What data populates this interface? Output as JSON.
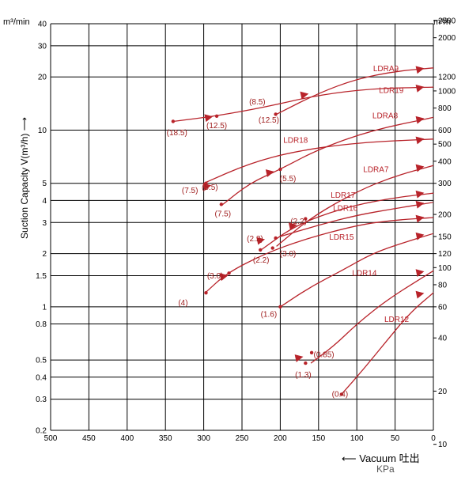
{
  "chart_data": {
    "type": "line",
    "ylabel": "Suction Capacity V(m³/h)",
    "yunit_left": "m³/min",
    "yunit_right": "m³/h",
    "xlabel": "Vacuum 吐出",
    "xunit": "KPa",
    "xlim": [
      500,
      0
    ],
    "ylim": [
      0.2,
      40
    ],
    "yscale": "log",
    "grid": true,
    "x_ticks": [
      500,
      450,
      400,
      350,
      300,
      250,
      200,
      150,
      100,
      50,
      0
    ],
    "y_ticks_left": [
      "0.2",
      "0.3",
      "0.4",
      "0.5",
      "0.8",
      "1",
      "1.5",
      "2",
      "3",
      "4",
      "5",
      "10",
      "20",
      "30",
      "40"
    ],
    "y_ticks_right": [
      "10",
      "20",
      "40",
      "60",
      "80",
      "100",
      "120",
      "150",
      "200",
      "300",
      "400",
      "500",
      "600",
      "800",
      "1000",
      "1200",
      "2000",
      "2500"
    ],
    "series": [
      {
        "name": "LDRA9",
        "points": [
          [
            205,
            12.3
          ],
          [
            150,
            16.2
          ],
          [
            100,
            19.5
          ],
          [
            50,
            21.5
          ],
          [
            0,
            22.5
          ]
        ]
      },
      {
        "name": "LDR19",
        "points": [
          [
            340,
            11.2
          ],
          [
            285,
            12.0
          ],
          [
            220,
            13.5
          ],
          [
            150,
            15.8
          ],
          [
            80,
            17.2
          ],
          [
            0,
            17.5
          ]
        ]
      },
      {
        "name": "LDRA8",
        "points": [
          [
            275,
            3.8
          ],
          [
            240,
            5.0
          ],
          [
            200,
            6.0
          ],
          [
            150,
            7.8
          ],
          [
            80,
            10.0
          ],
          [
            0,
            11.8
          ]
        ]
      },
      {
        "name": "LDR18",
        "points": [
          [
            300,
            5.0
          ],
          [
            240,
            6.5
          ],
          [
            180,
            7.6
          ],
          [
            100,
            8.5
          ],
          [
            0,
            8.9
          ]
        ]
      },
      {
        "name": "LDRA7",
        "points": [
          [
            205,
            2.2
          ],
          [
            160,
            3.2
          ],
          [
            100,
            4.5
          ],
          [
            50,
            5.5
          ],
          [
            0,
            6.3
          ]
        ]
      },
      {
        "name": "LDR17",
        "points": [
          [
            225,
            2.1
          ],
          [
            180,
            2.9
          ],
          [
            120,
            3.6
          ],
          [
            60,
            4.1
          ],
          [
            0,
            4.4
          ]
        ]
      },
      {
        "name": "LDR16",
        "points": [
          [
            200,
            2.5
          ],
          [
            150,
            2.9
          ],
          [
            100,
            3.3
          ],
          [
            50,
            3.6
          ],
          [
            0,
            3.9
          ]
        ]
      },
      {
        "name": "LDR15",
        "points": [
          [
            298,
            1.2
          ],
          [
            270,
            1.55
          ],
          [
            220,
            2.0
          ],
          [
            170,
            2.4
          ],
          [
            100,
            2.9
          ],
          [
            50,
            3.1
          ],
          [
            0,
            3.2
          ]
        ]
      },
      {
        "name": "LDR14",
        "points": [
          [
            200,
            1.0
          ],
          [
            160,
            1.3
          ],
          [
            120,
            1.6
          ],
          [
            80,
            2.0
          ],
          [
            40,
            2.3
          ],
          [
            0,
            2.6
          ]
        ]
      },
      {
        "name": "LDR12",
        "points": [
          [
            160,
            0.48
          ],
          [
            130,
            0.6
          ],
          [
            100,
            0.8
          ],
          [
            60,
            1.1
          ],
          [
            0,
            1.6
          ]
        ]
      },
      {
        "name": "",
        "points": [
          [
            120,
            0.32
          ],
          [
            90,
            0.45
          ],
          [
            60,
            0.65
          ],
          [
            30,
            0.93
          ],
          [
            0,
            1.2
          ]
        ]
      }
    ],
    "curve_labels": [
      {
        "text": "LDRA9",
        "x": 62,
        "y": 21.5
      },
      {
        "text": "LDR19",
        "x": 55,
        "y": 16.2
      },
      {
        "text": "LDRA8",
        "x": 63,
        "y": 11.7
      },
      {
        "text": "LDR18",
        "x": 180,
        "y": 8.5
      },
      {
        "text": "LDRA7",
        "x": 75,
        "y": 5.8
      },
      {
        "text": "LDR17",
        "x": 118,
        "y": 4.15
      },
      {
        "text": "LDR16",
        "x": 115,
        "y": 3.5
      },
      {
        "text": "LDR15",
        "x": 120,
        "y": 2.4
      },
      {
        "text": "LDR14",
        "x": 90,
        "y": 1.5
      },
      {
        "text": "LDR12",
        "x": 48,
        "y": 0.82
      }
    ],
    "markers": [
      {
        "x": 340,
        "y": 11.2
      },
      {
        "x": 283,
        "y": 12.0
      },
      {
        "x": 206,
        "y": 12.3
      },
      {
        "x": 297,
        "y": 5.0
      },
      {
        "x": 277,
        "y": 3.8
      },
      {
        "x": 200,
        "y": 6.0
      },
      {
        "x": 226,
        "y": 2.1
      },
      {
        "x": 210,
        "y": 2.15
      },
      {
        "x": 206,
        "y": 2.45
      },
      {
        "x": 167,
        "y": 3.15
      },
      {
        "x": 297,
        "y": 1.2
      },
      {
        "x": 267,
        "y": 1.55
      },
      {
        "x": 200,
        "y": 1.0
      },
      {
        "x": 159,
        "y": 0.55
      },
      {
        "x": 167,
        "y": 0.48
      },
      {
        "x": 120,
        "y": 0.32
      }
    ],
    "arrows": [
      {
        "x": 290,
        "y": 11.9
      },
      {
        "x": 165,
        "y": 16.0
      },
      {
        "x": 14,
        "y": 22.3
      },
      {
        "x": 14,
        "y": 17.5
      },
      {
        "x": 292,
        "y": 4.85
      },
      {
        "x": 210,
        "y": 5.8
      },
      {
        "x": 14,
        "y": 11.6
      },
      {
        "x": 14,
        "y": 8.9
      },
      {
        "x": 222,
        "y": 2.4
      },
      {
        "x": 180,
        "y": 2.9
      },
      {
        "x": 14,
        "y": 6.2
      },
      {
        "x": 14,
        "y": 4.4
      },
      {
        "x": 14,
        "y": 3.85
      },
      {
        "x": 270,
        "y": 1.5
      },
      {
        "x": 14,
        "y": 3.2
      },
      {
        "x": 14,
        "y": 2.55
      },
      {
        "x": 172,
        "y": 0.52
      },
      {
        "x": 14,
        "y": 1.58
      },
      {
        "x": 14,
        "y": 1.19
      }
    ],
    "annotations": [
      {
        "text": "(18.5)",
        "x": 335,
        "y": 9.35
      },
      {
        "text": "(12.5)",
        "x": 283,
        "y": 10.25
      },
      {
        "text": "(8.5)",
        "x": 230,
        "y": 14.0
      },
      {
        "text": "(12.5)",
        "x": 215,
        "y": 11.0
      },
      {
        "text": "(7.5)",
        "x": 318,
        "y": 4.4
      },
      {
        "text": "(5.5)",
        "x": 292,
        "y": 4.6
      },
      {
        "text": "(5.5)",
        "x": 190,
        "y": 5.15
      },
      {
        "text": "(7.5)",
        "x": 275,
        "y": 3.25
      },
      {
        "text": "(2.2)",
        "x": 233,
        "y": 2.35
      },
      {
        "text": "(2.2)",
        "x": 225,
        "y": 1.78
      },
      {
        "text": "(3.0)",
        "x": 190,
        "y": 1.93
      },
      {
        "text": "(2.2)",
        "x": 176,
        "y": 2.95
      },
      {
        "text": "(3.0)",
        "x": 285,
        "y": 1.45
      },
      {
        "text": "(4)",
        "x": 327,
        "y": 1.02
      },
      {
        "text": "(1.6)",
        "x": 215,
        "y": 0.88
      },
      {
        "text": "(0.85)",
        "x": 143,
        "y": 0.52
      },
      {
        "text": "(1.3)",
        "x": 170,
        "y": 0.4
      },
      {
        "text": "(0.4)",
        "x": 122,
        "y": 0.31
      }
    ]
  },
  "colors": {
    "curve": "#b8232a",
    "grid": "#000000",
    "text": "#000000",
    "annotation": "#a02020"
  }
}
